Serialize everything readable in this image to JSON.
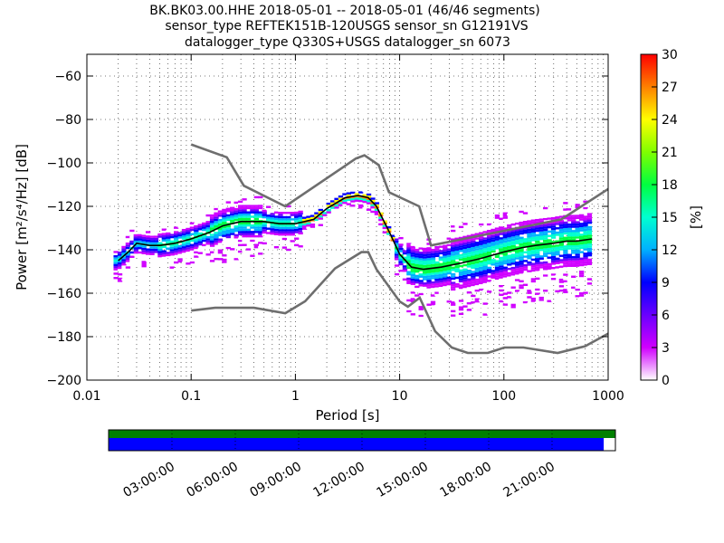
{
  "chart_data": {
    "type": "heatmap",
    "title_lines": [
      "BK.BK03.00.HHE   2018-05-01 -- 2018-05-01  (46/46 segments)",
      "sensor_type REFTEK151B-120USGS sensor_sn G12191VS",
      "datalogger_type Q330S+USGS datalogger_sn 6073"
    ],
    "xlabel": "Period [s]",
    "ylabel": "Power [m²/s⁴/Hz] [dB]",
    "x_scale": "log",
    "xlim": [
      0.01,
      1000
    ],
    "ylim": [
      -200,
      -50
    ],
    "x_ticks": [
      0.01,
      0.1,
      1,
      10,
      100,
      1000
    ],
    "x_tick_labels": [
      "0.01",
      "0.1",
      "1",
      "10",
      "100",
      "1000"
    ],
    "y_ticks": [
      -200,
      -180,
      -160,
      -140,
      -120,
      -100,
      -80,
      -60
    ],
    "y_tick_labels": [
      "−200",
      "−180",
      "−160",
      "−140",
      "−120",
      "−100",
      "−80",
      "−60"
    ],
    "grid": true,
    "colorbar": {
      "label": "[%]",
      "range": [
        0,
        30
      ],
      "ticks": [
        0,
        3,
        6,
        9,
        12,
        15,
        18,
        21,
        24,
        27,
        30
      ],
      "tick_labels": [
        "0",
        "3",
        "6",
        "9",
        "12",
        "15",
        "18",
        "21",
        "24",
        "27",
        "30"
      ]
    },
    "nhnm": {
      "period": [
        0.1,
        0.22,
        0.32,
        0.8,
        3.8,
        4.6,
        6.3,
        7.9,
        15.4,
        20,
        354.8,
        1000
      ],
      "power": [
        -91.5,
        -97.4,
        -110.5,
        -120,
        -98,
        -96.5,
        -101,
        -113.5,
        -120,
        -138,
        -126,
        -112
      ]
    },
    "nlnm": {
      "period": [
        0.1,
        0.17,
        0.4,
        0.8,
        1.24,
        2.4,
        4.3,
        5,
        6,
        10,
        12,
        15.6,
        21.9,
        31.6,
        45,
        70,
        101,
        154,
        328,
        600,
        1000
      ],
      "power": [
        -168,
        -166.7,
        -166.7,
        -169.2,
        -163.7,
        -148.6,
        -141.1,
        -141.1,
        -149,
        -163.8,
        -166.2,
        -162.1,
        -177.5,
        -185,
        -187.5,
        -187.5,
        -185,
        -185,
        -187.5,
        -184.4,
        -178.6
      ]
    },
    "mean_curve": {
      "period": [
        0.02,
        0.025,
        0.03,
        0.04,
        0.05,
        0.07,
        0.1,
        0.15,
        0.2,
        0.3,
        0.5,
        0.7,
        1,
        1.5,
        2,
        3,
        4,
        5,
        6,
        8,
        10,
        13,
        17,
        25,
        40,
        60,
        100,
        150,
        200,
        300,
        400,
        500,
        700
      ],
      "power": [
        -145,
        -141,
        -137,
        -138,
        -138,
        -137,
        -135,
        -132,
        -129,
        -127,
        -127,
        -128,
        -128,
        -126,
        -121,
        -116,
        -115,
        -116,
        -120,
        -132,
        -142,
        -148,
        -149,
        -148,
        -146,
        -144,
        -141,
        -139,
        -138,
        -137,
        -136,
        -136,
        -135
      ]
    },
    "coverage": {
      "time_tick_labels": [
        "03:00:00",
        "06:00:00",
        "09:00:00",
        "12:00:00",
        "15:00:00",
        "18:00:00",
        "21:00:00"
      ],
      "data_fraction": 0.977,
      "colors": {
        "segments": "#008000",
        "data": "#0000ff"
      }
    }
  }
}
